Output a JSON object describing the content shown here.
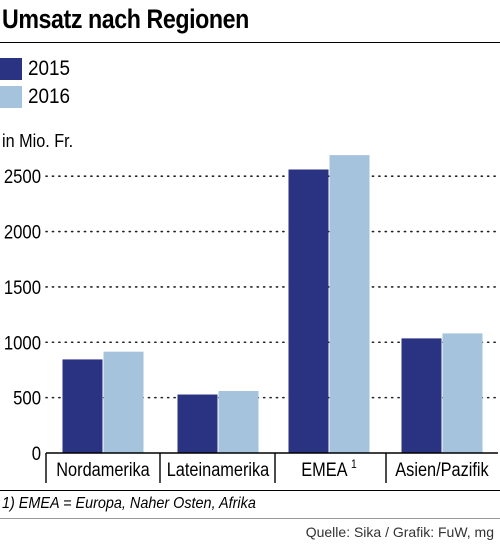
{
  "chart_data": {
    "type": "bar",
    "title": "Umsatz nach Regionen",
    "ylabel": "in Mio. Fr.",
    "categories": [
      "Nordamerika",
      "Lateinamerika",
      "EMEA",
      "Asien/Pazifik"
    ],
    "category_superscripts": [
      "",
      "",
      "1",
      ""
    ],
    "series": [
      {
        "name": "2015",
        "color": "#2a3282",
        "values": [
          845,
          528,
          2560,
          1035
        ]
      },
      {
        "name": "2016",
        "color": "#a6c3de",
        "values": [
          915,
          560,
          2690,
          1080
        ]
      }
    ],
    "ylim": [
      0,
      2700
    ],
    "yticks": [
      0,
      500,
      1000,
      1500,
      2000,
      2500
    ],
    "grid": "dotted horizontal",
    "legend_placement": "top-left",
    "footnote": "1) EMEA = Europa, Naher Osten, Afrika",
    "source": "Quelle: Sika / Grafik: FuW, mg"
  }
}
